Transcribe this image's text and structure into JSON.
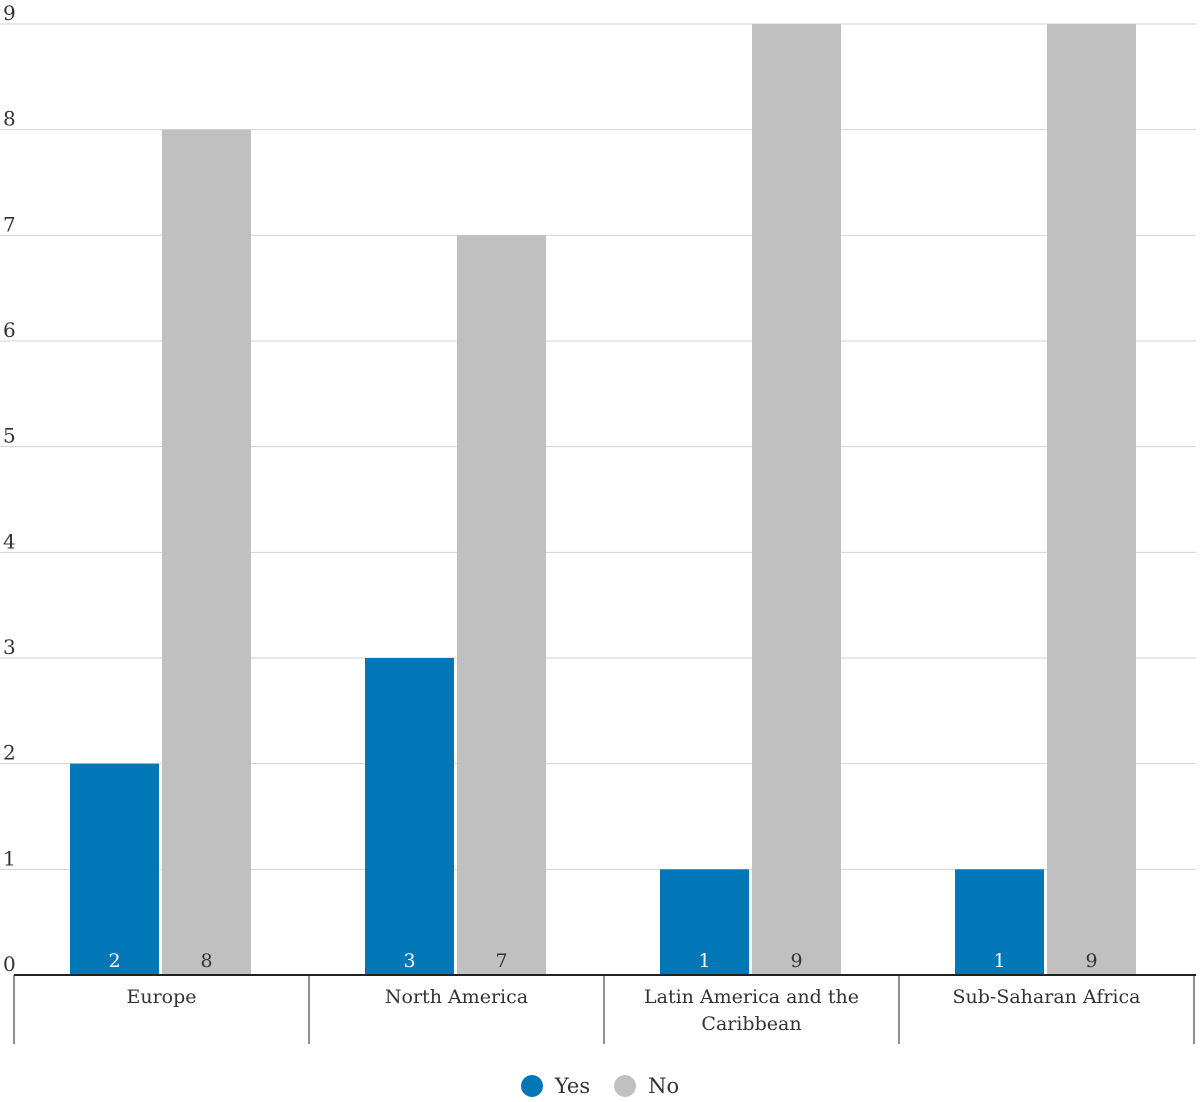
{
  "chart_data": {
    "type": "bar",
    "categories": [
      "Europe",
      "North America",
      "Latin America and the Caribbean",
      "Sub-Saharan Africa"
    ],
    "series": [
      {
        "name": "Yes",
        "values": [
          2,
          3,
          1,
          1
        ],
        "color": "#0277b8"
      },
      {
        "name": "No",
        "values": [
          8,
          7,
          9,
          9
        ],
        "color": "#c0c0c0"
      }
    ],
    "ylim": [
      0,
      9
    ],
    "yticks": [
      0,
      1,
      2,
      3,
      4,
      5,
      6,
      7,
      8,
      9
    ],
    "grid": true,
    "legend": "bottom-center",
    "data_labels": true,
    "title": "",
    "xlabel": "",
    "ylabel": ""
  }
}
